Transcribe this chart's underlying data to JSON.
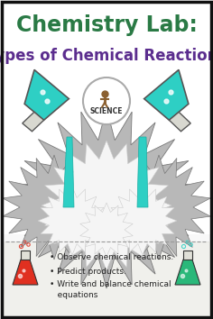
{
  "bg_color": "#f8f8f8",
  "border_color": "#111111",
  "title_line1": "Chemistry Lab:",
  "title_line1_color": "#2a7a45",
  "title_line2": "Types of Chemical Reactions",
  "title_line2_color": "#5b2d8e",
  "bullet_points": [
    "• Observe chemical reactions.",
    "• Predict products.",
    "• Write and balance chemical",
    "   equations"
  ],
  "bullet_color": "#222222",
  "flask_teal": "#2ecfc4",
  "flask_teal_dark": "#1aada3",
  "flask_outline": "#555555",
  "flask_red": "#e03020",
  "flask_green": "#2ab87a",
  "explosion_grey": "#b8b8b8",
  "explosion_dark": "#999999",
  "explosion_white": "#f5f5f5",
  "white": "#ffffff",
  "bottom_bg": "#f0f0ec",
  "divider_color": "#999999",
  "science_border": "#aaaaaa"
}
